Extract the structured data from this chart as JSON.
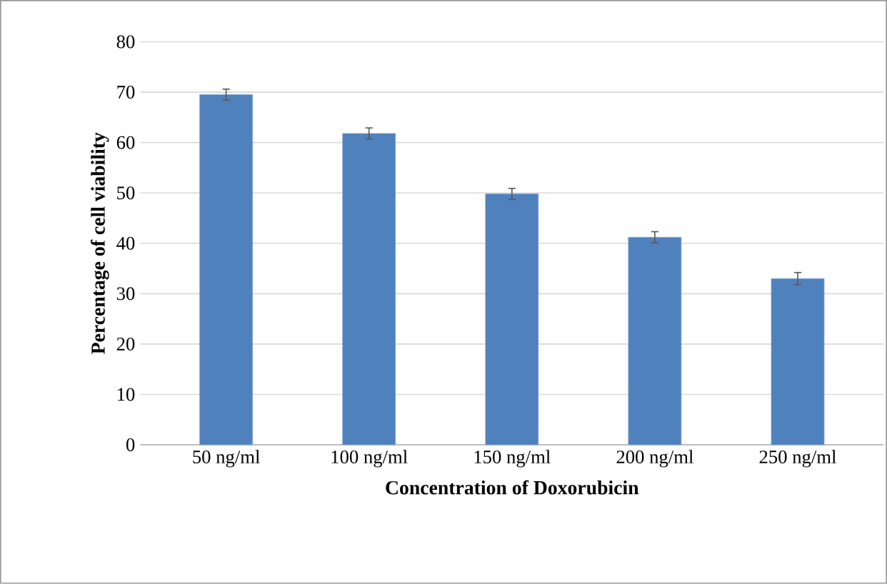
{
  "chart_data": {
    "type": "bar",
    "xlabel": "Concentration of Doxorubicin",
    "ylabel": "Percentage of cell viability",
    "categories": [
      "50 ng/ml",
      "100 ng/ml",
      "150 ng/ml",
      "200 ng/ml",
      "250 ng/ml"
    ],
    "values": [
      69.5,
      61.8,
      49.8,
      41.2,
      33.0
    ],
    "errors": [
      1.1,
      1.1,
      1.1,
      1.1,
      1.2
    ],
    "color": "#4f81bd",
    "ylim": [
      0,
      80
    ],
    "yticks": [
      0,
      10,
      20,
      30,
      40,
      50,
      60,
      70,
      80
    ],
    "grid": "y"
  }
}
